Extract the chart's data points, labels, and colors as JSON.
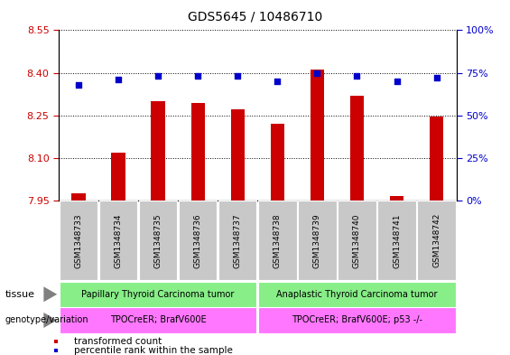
{
  "title": "GDS5645 / 10486710",
  "samples": [
    "GSM1348733",
    "GSM1348734",
    "GSM1348735",
    "GSM1348736",
    "GSM1348737",
    "GSM1348738",
    "GSM1348739",
    "GSM1348740",
    "GSM1348741",
    "GSM1348742"
  ],
  "transformed_count": [
    7.975,
    8.12,
    8.3,
    8.295,
    8.27,
    8.22,
    8.41,
    8.32,
    7.965,
    8.245
  ],
  "percentile_rank": [
    68,
    71,
    73,
    73,
    73,
    70,
    75,
    73,
    70,
    72
  ],
  "ylim_left": [
    7.95,
    8.55
  ],
  "ylim_right": [
    0,
    100
  ],
  "yticks_left": [
    7.95,
    8.1,
    8.25,
    8.4,
    8.55
  ],
  "yticks_right": [
    0,
    25,
    50,
    75,
    100
  ],
  "bar_color": "#cc0000",
  "dot_color": "#0000cc",
  "bar_width": 0.35,
  "tissue_groups": [
    {
      "text": "Papillary Thyroid Carcinoma tumor",
      "indices": [
        0,
        1,
        2,
        3,
        4
      ],
      "color": "#88ee88"
    },
    {
      "text": "Anaplastic Thyroid Carcinoma tumor",
      "indices": [
        5,
        6,
        7,
        8,
        9
      ],
      "color": "#88ee88"
    }
  ],
  "genotype_groups": [
    {
      "text": "TPOCreER; BrafV600E",
      "indices": [
        0,
        1,
        2,
        3,
        4
      ],
      "color": "#ff77ff"
    },
    {
      "text": "TPOCreER; BrafV600E; p53 -/-",
      "indices": [
        5,
        6,
        7,
        8,
        9
      ],
      "color": "#ff77ff"
    }
  ],
  "legend_items": [
    {
      "color": "#cc0000",
      "label": "transformed count"
    },
    {
      "color": "#0000cc",
      "label": "percentile rank within the sample"
    }
  ],
  "tissue_row_label": "tissue",
  "genotype_row_label": "genotype/variation",
  "sample_bg_color": "#c8c8c8",
  "background_color": "#ffffff",
  "tick_color_left": "#cc0000",
  "tick_color_right": "#0000cc",
  "title_fontsize": 10,
  "tick_fontsize": 8,
  "label_fontsize": 8,
  "sample_fontsize": 6.5
}
